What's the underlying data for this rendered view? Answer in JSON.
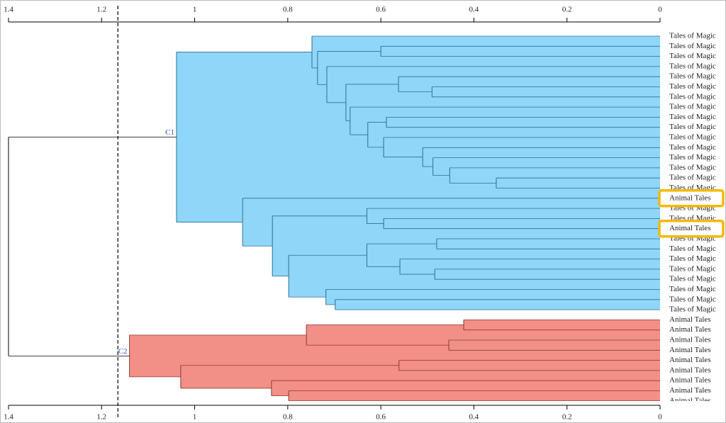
{
  "chart_data": {
    "type": "dendrogram",
    "xlim": [
      1.4,
      0
    ],
    "xticks": [
      1.4,
      1.2,
      1,
      0.8,
      0.6,
      0.4,
      0.2,
      0
    ],
    "cut": 1.165,
    "leaves": [
      "Tales of Magic",
      "Tales of Magic",
      "Tales of Magic",
      "Tales of Magic",
      "Tales of Magic",
      "Tales of Magic",
      "Tales of Magic",
      "Tales of Magic",
      "Tales of Magic",
      "Tales of Magic",
      "Tales of Magic",
      "Tales of Magic",
      "Tales of Magic",
      "Tales of Magic",
      "Tales of Magic",
      "Tales of Magic",
      "Animal Tales",
      "Tales of Magic",
      "Tales of Magic",
      "Animal Tales",
      "Tales of Magic",
      "Tales of Magic",
      "Tales of Magic",
      "Tales of Magic",
      "Tales of Magic",
      "Tales of Magic",
      "Tales of Magic",
      "Tales of Magic",
      "Animal Tales",
      "Animal Tales",
      "Animal Tales",
      "Animal Tales",
      "Animal Tales",
      "Animal Tales",
      "Animal Tales",
      "Animal Tales",
      "Animal Tales"
    ],
    "highlighted": [
      16,
      19
    ],
    "merges": [
      [
        1,
        2,
        0.6
      ],
      [
        5,
        6,
        0.49
      ],
      [
        4,
        38,
        0.562
      ],
      [
        14,
        15,
        0.352
      ],
      [
        13,
        40,
        0.452
      ],
      [
        12,
        41,
        0.488
      ],
      [
        11,
        42,
        0.51
      ],
      [
        10,
        43,
        0.594
      ],
      [
        8,
        9,
        0.588
      ],
      [
        45,
        44,
        0.628
      ],
      [
        7,
        46,
        0.666
      ],
      [
        39,
        47,
        0.675
      ],
      [
        3,
        48,
        0.716
      ],
      [
        37,
        49,
        0.736
      ],
      [
        0,
        50,
        0.748
      ],
      [
        18,
        19,
        0.594
      ],
      [
        17,
        52,
        0.63
      ],
      [
        20,
        21,
        0.48
      ],
      [
        23,
        24,
        0.484
      ],
      [
        22,
        55,
        0.559
      ],
      [
        54,
        56,
        0.63
      ],
      [
        26,
        27,
        0.698
      ],
      [
        25,
        58,
        0.718
      ],
      [
        57,
        59,
        0.798
      ],
      [
        53,
        60,
        0.833
      ],
      [
        16,
        61,
        0.897
      ],
      [
        51,
        62,
        1.039
      ],
      [
        28,
        29,
        0.422
      ],
      [
        30,
        31,
        0.454
      ],
      [
        64,
        65,
        0.76
      ],
      [
        32,
        33,
        0.561
      ],
      [
        35,
        36,
        0.798
      ],
      [
        34,
        68,
        0.835
      ],
      [
        67,
        69,
        1.03
      ],
      [
        66,
        70,
        1.14
      ],
      [
        63,
        71,
        1.4
      ]
    ],
    "clusters": [
      {
        "name": "C1",
        "node": 63,
        "color": "#8fd6f9"
      },
      {
        "name": "C2",
        "node": 71,
        "color": "#f28f86"
      }
    ]
  }
}
